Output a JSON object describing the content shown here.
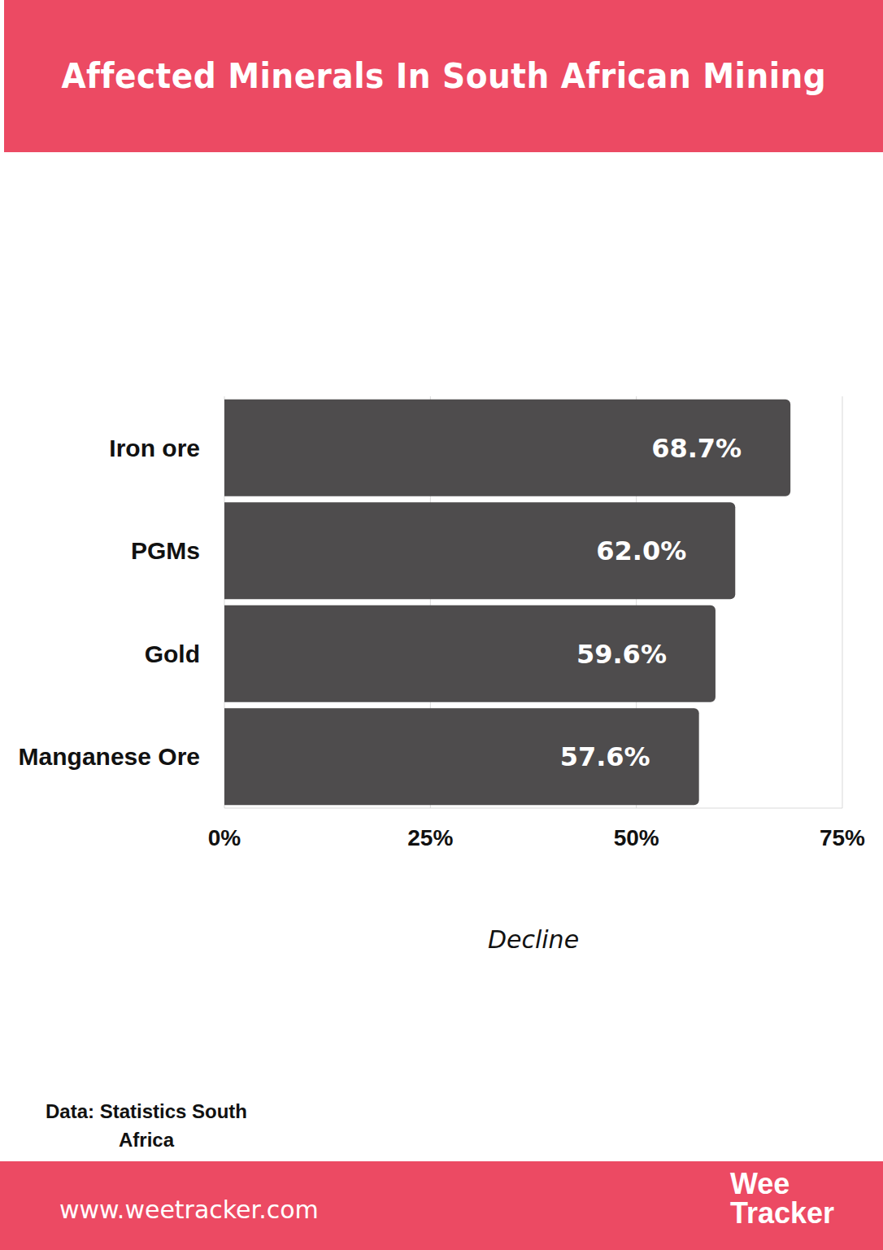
{
  "chart_data": {
    "type": "bar",
    "orientation": "horizontal",
    "title": "Affected Minerals In South African Mining",
    "categories": [
      "Iron ore",
      "PGMs",
      "Gold",
      "Manganese Ore"
    ],
    "values": [
      68.7,
      62.0,
      59.6,
      57.6
    ],
    "value_labels": [
      "68.7%",
      "62.0%",
      "59.6%",
      "57.6%"
    ],
    "data_labels": true,
    "color": "#4e4c4d",
    "xlabel": "Decline",
    "xlim": [
      0,
      75
    ],
    "xticks": [
      {
        "value": 0,
        "label": "0%"
      },
      {
        "value": 25,
        "label": "25%"
      },
      {
        "value": 50,
        "label": "50%"
      },
      {
        "value": 75,
        "label": "75%"
      }
    ],
    "grid": true
  },
  "source": "Data: Statistics South Africa",
  "footer": {
    "url": "www.weetracker.com",
    "logo": [
      "Wee",
      "Tracker"
    ]
  }
}
